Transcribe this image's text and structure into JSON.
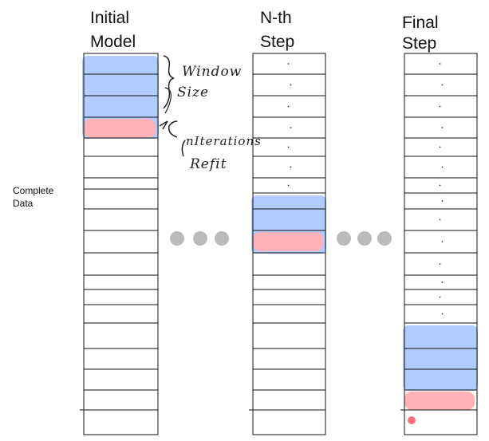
{
  "titles": {
    "initial": [
      "Initial",
      "Model"
    ],
    "nth": [
      "N-th",
      "Step"
    ],
    "final": [
      "Final",
      "Step"
    ]
  },
  "side_label": [
    "Complete",
    "Data"
  ],
  "annotations": {
    "window_size": [
      "Window",
      "Size"
    ],
    "refit": [
      "nIterations",
      "Refit"
    ]
  },
  "colors": {
    "window": "#b3ccff",
    "refit": "#ffb3b8",
    "ellipsis": "#bbbbbb",
    "grid": "#111111"
  },
  "columns": [
    {
      "key": "initial",
      "window_rows": [
        0,
        3
      ],
      "refit_row": 3
    },
    {
      "key": "nth",
      "window_rows": [
        7,
        9
      ],
      "refit_row": 9
    },
    {
      "key": "final",
      "window_rows": [
        14,
        16
      ],
      "refit_row": 17
    }
  ]
}
